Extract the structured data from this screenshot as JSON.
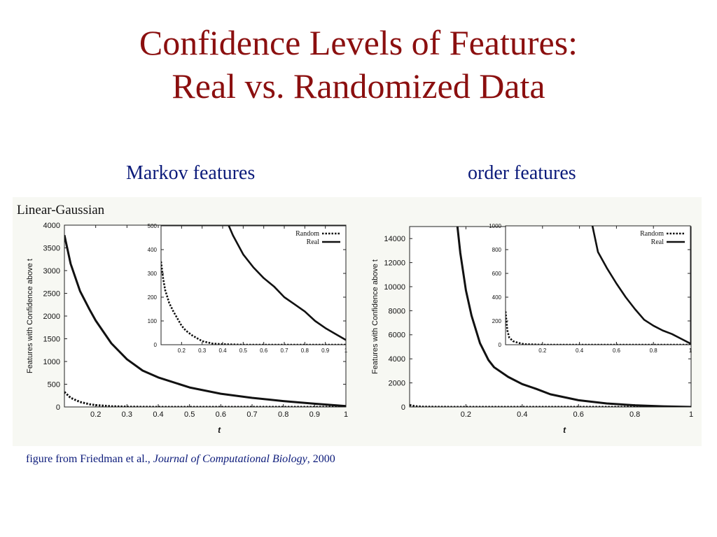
{
  "title": {
    "line1": "Confidence Levels of Features:",
    "line2": "Real vs. Randomized Data"
  },
  "subheads": {
    "left": "Markov features",
    "right": "order features"
  },
  "figure": {
    "heading": "Linear-Gaussian"
  },
  "caption": {
    "prefix": "figure from Friedman et al., ",
    "journal": "Journal of Computational Biology",
    "suffix": ", 2000"
  },
  "chart_data": [
    {
      "id": "markov-main",
      "type": "line",
      "xlabel": "t",
      "ylabel": "Features with Confidence above t",
      "xlim": [
        0.1,
        1.0
      ],
      "ylim": [
        0,
        4000
      ],
      "xticks": [
        "0.2",
        "0.3",
        "0.4",
        "0.5",
        "0.6",
        "0.7",
        "0.8",
        "0.9",
        "1"
      ],
      "yticks": [
        "0",
        "500",
        "1000",
        "1500",
        "2000",
        "2500",
        "3000",
        "3500",
        "4000"
      ],
      "series": [
        {
          "name": "Real",
          "style": "solid",
          "x": [
            0.1,
            0.12,
            0.15,
            0.18,
            0.2,
            0.25,
            0.3,
            0.35,
            0.4,
            0.5,
            0.6,
            0.7,
            0.8,
            0.9,
            1.0
          ],
          "y": [
            3780,
            3150,
            2550,
            2150,
            1900,
            1400,
            1050,
            800,
            650,
            430,
            290,
            200,
            130,
            70,
            20
          ]
        },
        {
          "name": "Random",
          "style": "dotted",
          "x": [
            0.1,
            0.12,
            0.15,
            0.18,
            0.2,
            0.25,
            0.3,
            0.4,
            0.5,
            0.6,
            0.7,
            0.8,
            0.9,
            1.0
          ],
          "y": [
            330,
            200,
            110,
            60,
            40,
            15,
            5,
            0,
            0,
            0,
            0,
            0,
            0,
            0
          ]
        }
      ]
    },
    {
      "id": "markov-inset",
      "type": "line",
      "xlim": [
        0.1,
        1.0
      ],
      "ylim": [
        0,
        500
      ],
      "xticks": [
        "0.2",
        "0.3",
        "0.4",
        "0.5",
        "0.6",
        "0.7",
        "0.8",
        "0.9",
        "1"
      ],
      "yticks": [
        "0",
        "100",
        "200",
        "300",
        "400",
        "500"
      ],
      "legend": "top-right",
      "series": [
        {
          "name": "Random",
          "style": "dotted",
          "x": [
            0.1,
            0.11,
            0.12,
            0.14,
            0.16,
            0.18,
            0.2,
            0.22,
            0.25,
            0.28,
            0.3,
            0.35,
            0.4,
            0.5,
            0.6,
            0.7,
            0.8,
            0.9,
            1.0
          ],
          "y": [
            350,
            280,
            230,
            175,
            140,
            110,
            80,
            60,
            40,
            25,
            15,
            5,
            2,
            0,
            0,
            0,
            0,
            0,
            0
          ]
        },
        {
          "name": "Real",
          "style": "solid",
          "x": [
            0.43,
            0.45,
            0.5,
            0.55,
            0.6,
            0.65,
            0.7,
            0.75,
            0.8,
            0.85,
            0.9,
            0.95,
            1.0
          ],
          "y": [
            500,
            460,
            380,
            325,
            280,
            245,
            200,
            170,
            140,
            100,
            70,
            45,
            20
          ]
        }
      ]
    },
    {
      "id": "order-main",
      "type": "line",
      "xlabel": "t",
      "ylabel": "Features with Confidence above t",
      "xlim": [
        0.0,
        1.0
      ],
      "ylim": [
        0,
        15000
      ],
      "xticks": [
        "0.2",
        "0.4",
        "0.6",
        "0.8",
        "1"
      ],
      "yticks": [
        "0",
        "2000",
        "4000",
        "6000",
        "8000",
        "10000",
        "12000",
        "14000"
      ],
      "series": [
        {
          "name": "Real",
          "style": "solid",
          "x": [
            0.17,
            0.18,
            0.2,
            0.22,
            0.25,
            0.28,
            0.3,
            0.35,
            0.4,
            0.45,
            0.5,
            0.6,
            0.7,
            0.8,
            0.9,
            1.0
          ],
          "y": [
            15000,
            12800,
            9700,
            7600,
            5300,
            3900,
            3300,
            2500,
            1900,
            1500,
            1050,
            560,
            290,
            140,
            50,
            0
          ]
        },
        {
          "name": "Random",
          "style": "dotted",
          "x": [
            0.0,
            0.02,
            0.05,
            0.1,
            0.2,
            0.4,
            0.6,
            0.8,
            1.0
          ],
          "y": [
            150,
            60,
            20,
            5,
            0,
            0,
            0,
            0,
            0
          ]
        }
      ]
    },
    {
      "id": "order-inset",
      "type": "line",
      "xlim": [
        0.0,
        1.0
      ],
      "ylim": [
        0,
        1000
      ],
      "xticks": [
        "0.2",
        "0.4",
        "0.6",
        "0.8",
        "1"
      ],
      "yticks": [
        "0",
        "200",
        "400",
        "600",
        "800",
        "1000"
      ],
      "legend": "top-right",
      "series": [
        {
          "name": "Random",
          "style": "dotted",
          "x": [
            0.0,
            0.005,
            0.01,
            0.02,
            0.04,
            0.07,
            0.1,
            0.2,
            0.4,
            0.6,
            0.8,
            1.0
          ],
          "y": [
            280,
            200,
            120,
            60,
            30,
            15,
            5,
            0,
            0,
            0,
            0,
            0
          ]
        },
        {
          "name": "Real",
          "style": "solid",
          "x": [
            0.47,
            0.5,
            0.55,
            0.6,
            0.65,
            0.7,
            0.75,
            0.8,
            0.85,
            0.9,
            0.95,
            1.0
          ],
          "y": [
            1000,
            780,
            640,
            515,
            400,
            300,
            210,
            160,
            120,
            90,
            50,
            10
          ]
        }
      ]
    }
  ]
}
